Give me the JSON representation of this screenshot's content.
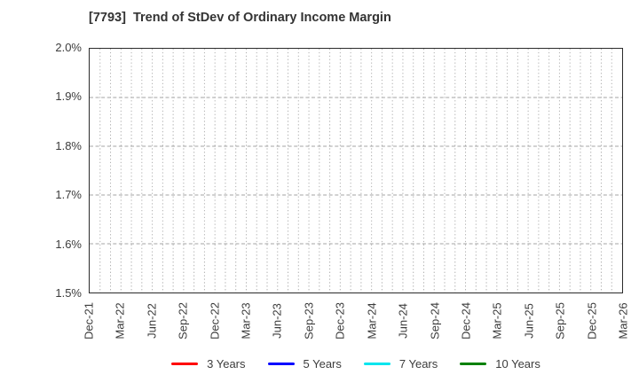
{
  "chart_data": {
    "type": "line",
    "title": "[7793]  Trend of StDev of Ordinary Income Margin",
    "xlabel": "",
    "ylabel": "",
    "ylim": [
      1.5,
      2.0
    ],
    "y_tick_labels": [
      "2.0%",
      "1.9%",
      "1.8%",
      "1.7%",
      "1.6%",
      "1.5%"
    ],
    "y_unit": "%",
    "x_tick_labels": [
      "Dec-21",
      "Mar-22",
      "Jun-22",
      "Sep-22",
      "Dec-22",
      "Mar-23",
      "Jun-23",
      "Sep-23",
      "Dec-23",
      "Mar-24",
      "Jun-24",
      "Sep-24",
      "Dec-24",
      "Mar-25",
      "Jun-25",
      "Sep-25",
      "Dec-25",
      "Mar-26"
    ],
    "x_minor_gridlines_per_label": 3,
    "x_total_minor_intervals": 51,
    "grid": true,
    "grid_color": "#b0b0b0",
    "legend_position": "bottom",
    "series": [
      {
        "name": "3 Years",
        "color": "#ff0000",
        "values": []
      },
      {
        "name": "5 Years",
        "color": "#0000ff",
        "values": []
      },
      {
        "name": "7 Years",
        "color": "#00e5ee",
        "values": []
      },
      {
        "name": "10 Years",
        "color": "#008000",
        "values": []
      }
    ]
  }
}
